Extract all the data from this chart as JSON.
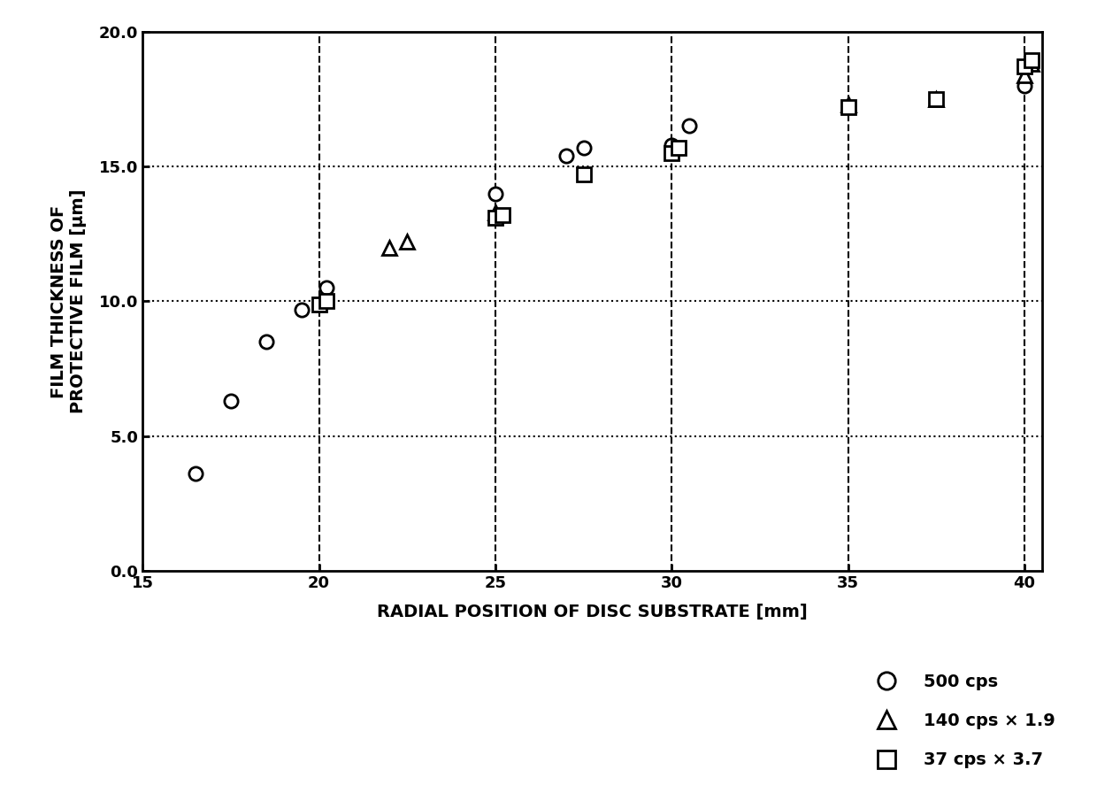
{
  "series_circle": {
    "x": [
      16.5,
      17.5,
      18.5,
      19.5,
      20.2,
      25.0,
      27.0,
      27.5,
      30.0,
      30.5,
      40.0
    ],
    "y": [
      3.6,
      6.3,
      8.5,
      9.7,
      10.5,
      14.0,
      15.4,
      15.7,
      15.8,
      16.5,
      18.0
    ]
  },
  "series_triangle": {
    "x": [
      22.0,
      22.5,
      25.0,
      35.0,
      37.5,
      40.0,
      40.2
    ],
    "y": [
      12.0,
      12.2,
      13.3,
      17.3,
      17.5,
      18.4,
      18.8
    ]
  },
  "series_square": {
    "x": [
      20.0,
      20.2,
      25.0,
      25.2,
      27.5,
      30.0,
      30.2,
      35.0,
      37.5,
      40.0,
      40.2
    ],
    "y": [
      9.9,
      10.0,
      13.1,
      13.2,
      14.7,
      15.5,
      15.7,
      17.2,
      17.5,
      18.7,
      18.95
    ]
  },
  "xlim": [
    15,
    40.5
  ],
  "ylim": [
    0.0,
    20.0
  ],
  "xticks": [
    15,
    20,
    25,
    30,
    35,
    40
  ],
  "yticks": [
    0.0,
    5.0,
    10.0,
    15.0,
    20.0
  ],
  "xlabel": "RADIAL POSITION OF DISC SUBSTRATE [mm]",
  "ylabel": "FILM THICKNESS OF\nPROTECTIVE FILM [μm]",
  "legend_labels": [
    "500 cps",
    "140 cps × 1.9",
    "37 cps × 3.7"
  ],
  "background_color": "#ffffff",
  "marker_size": 11,
  "label_fontsize": 14,
  "tick_fontsize": 13,
  "legend_fontsize": 14
}
